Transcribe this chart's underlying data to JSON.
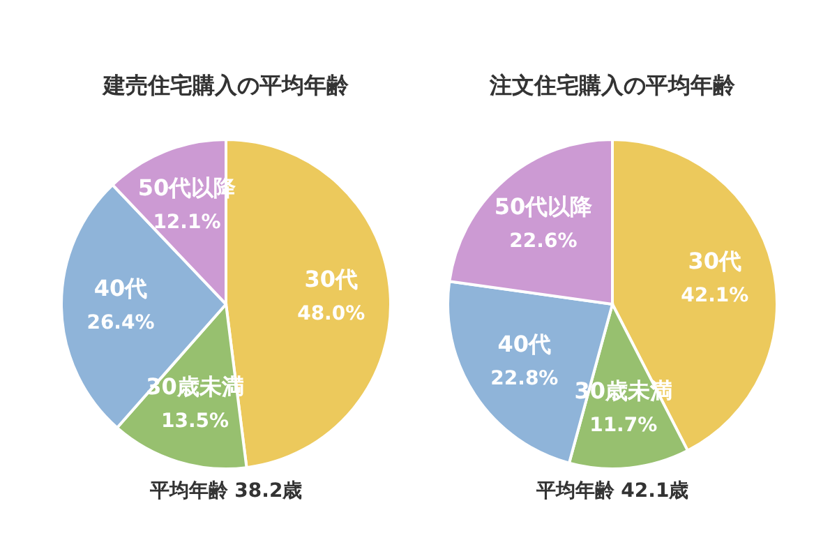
{
  "chart_data": [
    {
      "type": "pie",
      "title": "建売住宅購入の平均年齢",
      "categories": [
        "30代",
        "30歳未満",
        "40代",
        "50代以降"
      ],
      "values": [
        48.0,
        13.5,
        26.4,
        12.1
      ],
      "value_labels": [
        "48.0%",
        "13.5%",
        "26.4%",
        "12.1%"
      ],
      "colors": [
        "#ecc95c",
        "#97c06f",
        "#8fb4d9",
        "#cc9ad3"
      ],
      "annotations": [
        "平均年齢 38.2歳"
      ]
    },
    {
      "type": "pie",
      "title": "注文住宅購入の平均年齢",
      "categories": [
        "30代",
        "30歳未満",
        "40代",
        "50代以降"
      ],
      "values": [
        42.1,
        11.7,
        22.8,
        22.6
      ],
      "value_labels": [
        "42.1%",
        "11.7%",
        "22.8%",
        "22.6%"
      ],
      "colors": [
        "#ecc95c",
        "#97c06f",
        "#8fb4d9",
        "#cc9ad3"
      ],
      "annotations": [
        "平均年齢 42.1歳"
      ]
    }
  ]
}
